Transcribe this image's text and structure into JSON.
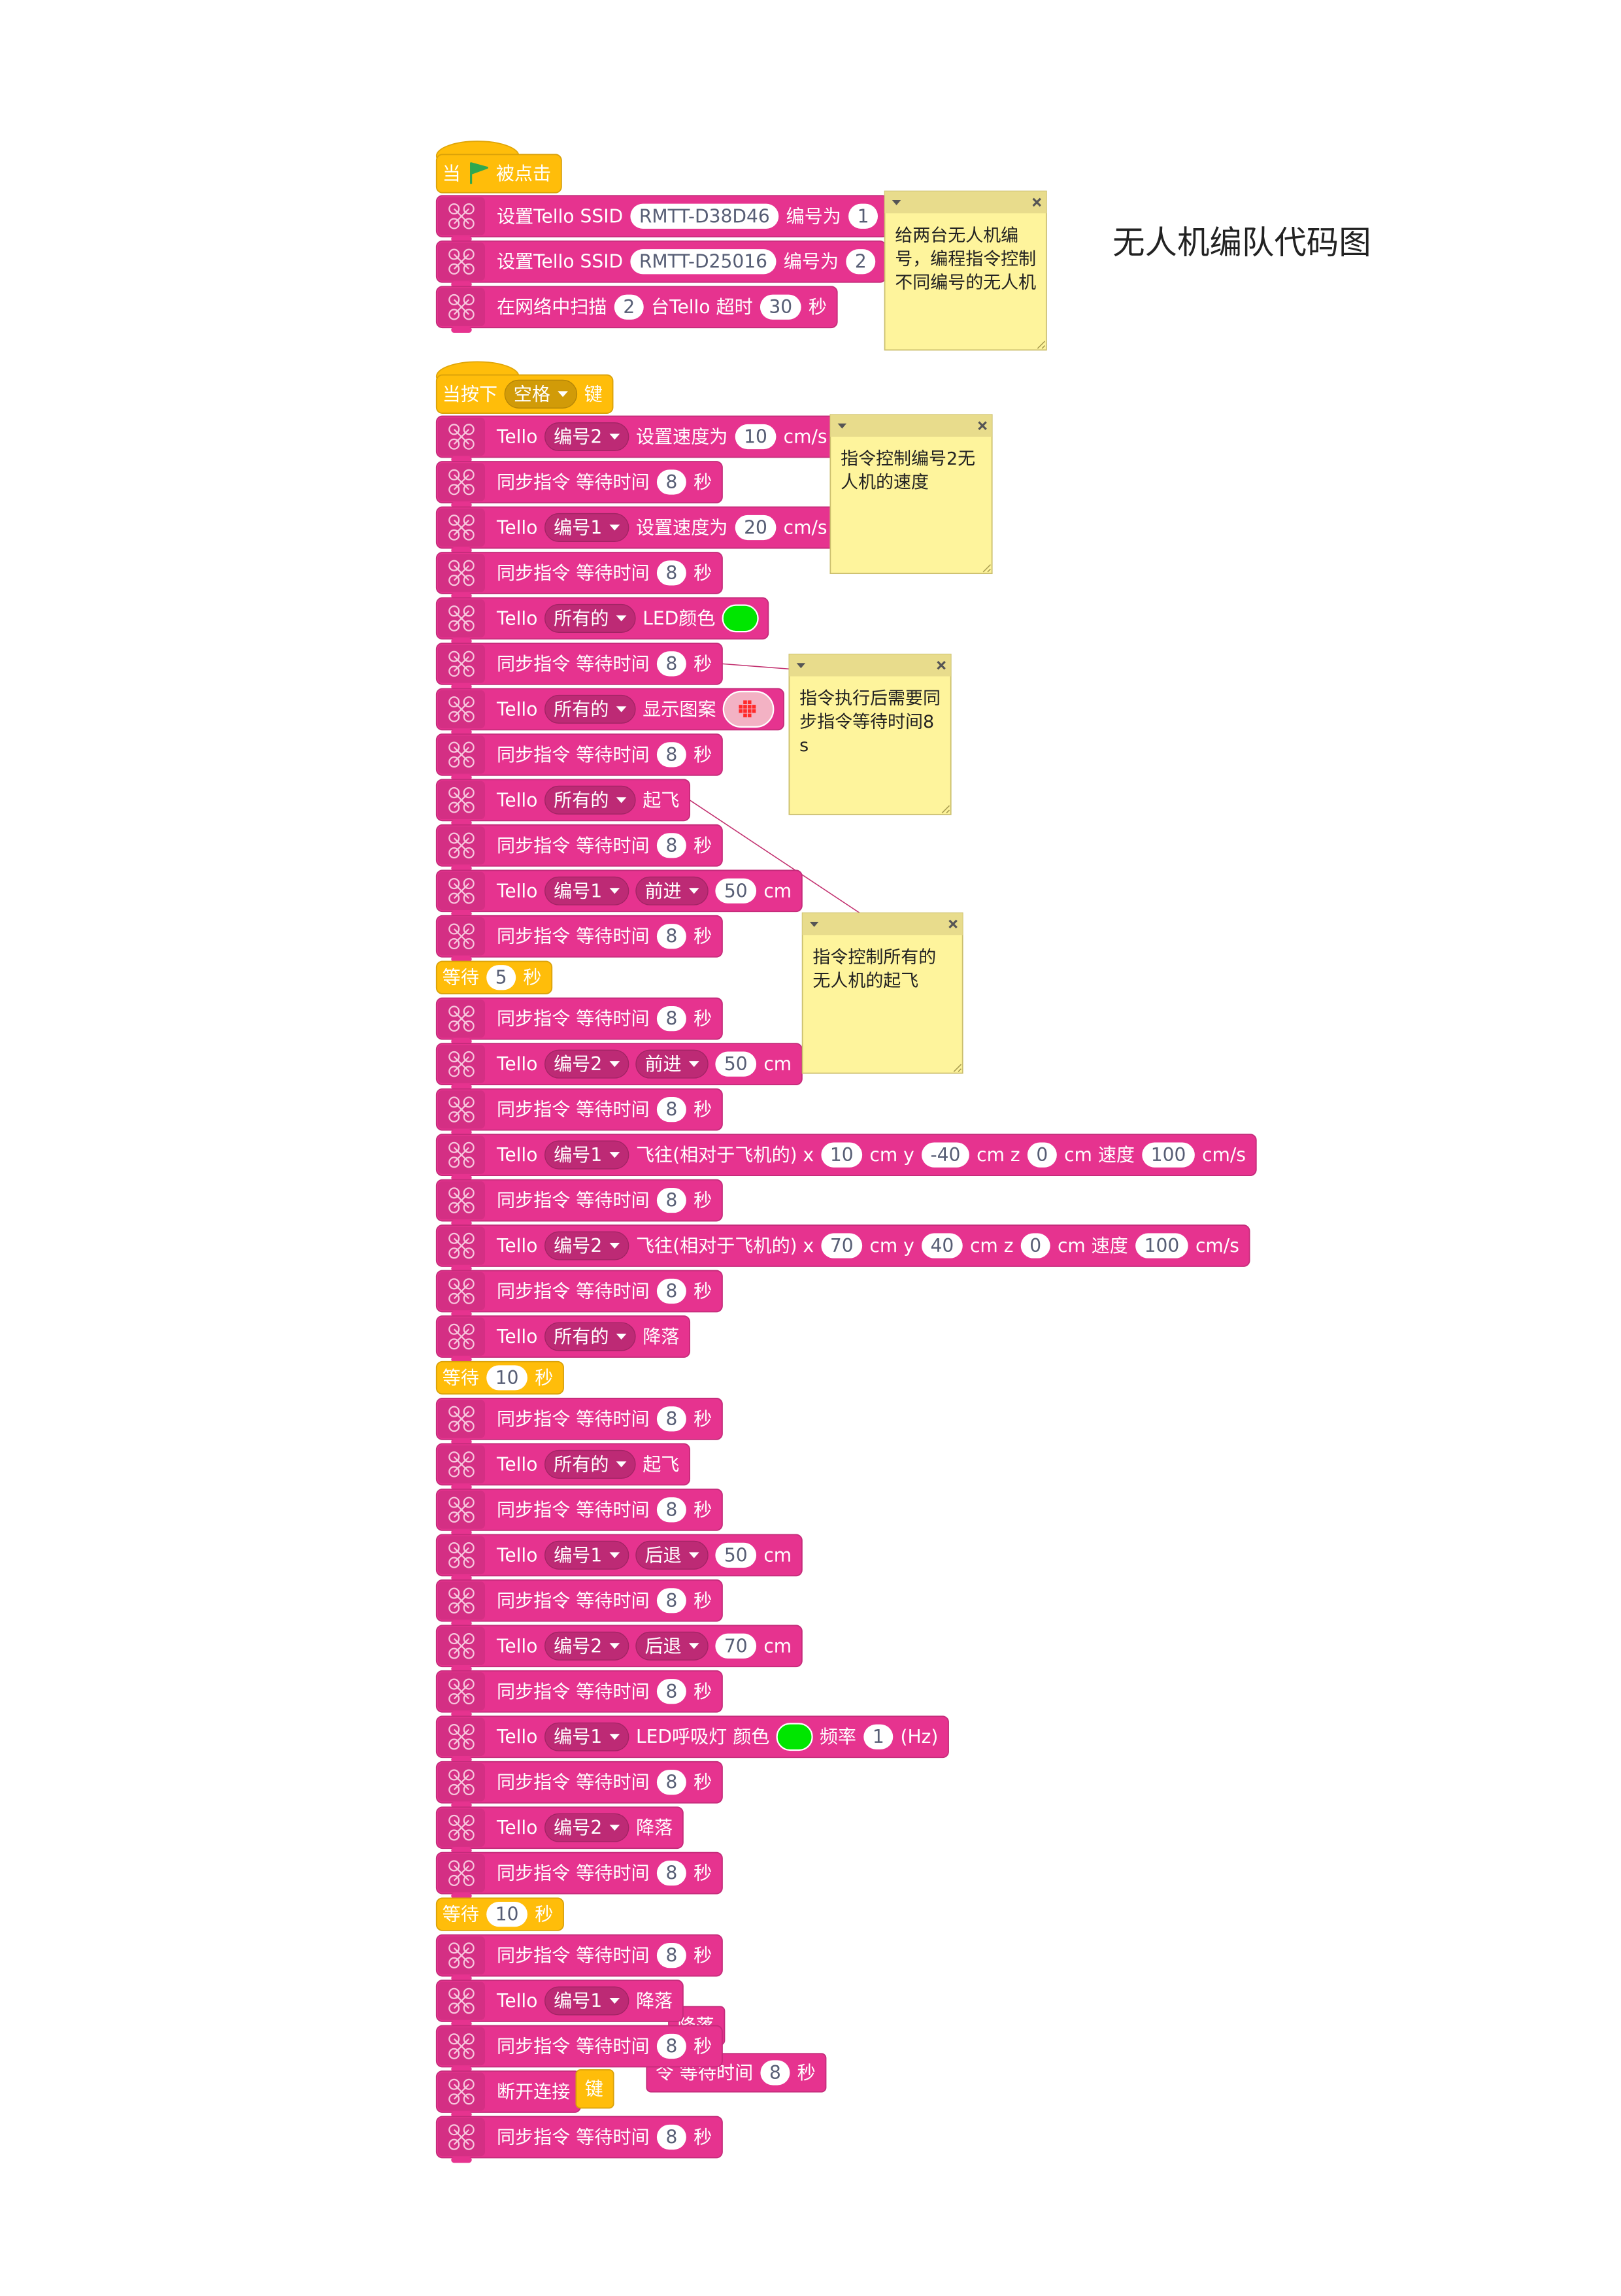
{
  "title": "无人机编队代码图",
  "scripts": [
    {
      "color": "#e6338f",
      "blocks": [
        {
          "color": "#ffbd0a",
          "parts": [
            "当",
            {
              "flag": "#2fa84f"
            },
            "被点击"
          ]
        },
        {
          "parts": [
            "设置Tello SSID",
            {
              "input": "RMTT-D38D46"
            },
            "编号为",
            {
              "input": 1
            }
          ]
        },
        {
          "parts": [
            "设置Tello SSID",
            {
              "input": "RMTT-D25016"
            },
            "编号为",
            {
              "input": 2
            }
          ]
        },
        {
          "parts": [
            "在网络中扫描",
            {
              "input": 2
            },
            "台Tello 超时",
            {
              "input": 30
            },
            "秒"
          ]
        }
      ]
    },
    {
      "color": "#e6338f",
      "blocks": [
        {
          "color": "#ffbd0a",
          "parts": [
            "当按下",
            {
              "menu": "空格"
            },
            "键"
          ]
        },
        {
          "parts": [
            "Tello",
            {
              "menu": "编号2"
            },
            "设置速度为",
            {
              "input": 10
            },
            "cm/s"
          ]
        },
        {
          "parts": [
            "同步指令 等待时间",
            {
              "input": 8
            },
            "秒"
          ]
        },
        {
          "parts": [
            "Tello",
            {
              "menu": "编号1"
            },
            "设置速度为",
            {
              "input": 20
            },
            "cm/s"
          ]
        },
        {
          "parts": [
            "同步指令 等待时间",
            {
              "input": 8
            },
            "秒"
          ]
        },
        {
          "parts": [
            "Tello",
            {
              "menu": "所有的"
            },
            "LED颜色",
            {
              "swatch": "#00e600"
            }
          ]
        },
        {
          "parts": [
            "同步指令 等待时间",
            {
              "input": 8
            },
            "秒"
          ]
        },
        {
          "parts": [
            "Tello",
            {
              "menu": "所有的"
            },
            "显示图案",
            {
              "matrix": "#ff2a2a"
            }
          ]
        },
        {
          "parts": [
            "同步指令 等待时间",
            {
              "input": 8
            },
            "秒"
          ]
        },
        {
          "parts": [
            "Tello",
            {
              "menu": "所有的"
            },
            "起飞"
          ]
        },
        {
          "parts": [
            "同步指令 等待时间",
            {
              "input": 8
            },
            "秒"
          ]
        },
        {
          "parts": [
            "Tello",
            {
              "menu": "编号1"
            },
            {
              "menu": "前进"
            },
            {
              "input": 50
            },
            "cm"
          ]
        },
        {
          "parts": [
            "同步指令 等待时间",
            {
              "input": 8
            },
            "秒"
          ]
        },
        {
          "color": "#ffbd0a",
          "parts": [
            "等待",
            {
              "input": 5
            },
            "秒"
          ]
        },
        {
          "parts": [
            "同步指令 等待时间",
            {
              "input": 8
            },
            "秒"
          ]
        },
        {
          "parts": [
            "Tello",
            {
              "menu": "编号2"
            },
            {
              "menu": "前进"
            },
            {
              "input": 50
            },
            "cm"
          ]
        },
        {
          "parts": [
            "同步指令 等待时间",
            {
              "input": 8
            },
            "秒"
          ]
        },
        {
          "parts": [
            "Tello",
            {
              "menu": "编号1"
            },
            "飞往(相对于飞机的) x",
            {
              "input": 10
            },
            "cm y",
            {
              "input": -40
            },
            "cm z",
            {
              "input": 0
            },
            "cm 速度",
            {
              "input": 100
            },
            "cm/s"
          ]
        },
        {
          "parts": [
            "同步指令 等待时间",
            {
              "input": 8
            },
            "秒"
          ]
        },
        {
          "parts": [
            "Tello",
            {
              "menu": "编号2"
            },
            "飞往(相对于飞机的) x",
            {
              "input": 70
            },
            "cm y",
            {
              "input": 40
            },
            "cm z",
            {
              "input": 0
            },
            "cm 速度",
            {
              "input": 100
            },
            "cm/s"
          ]
        },
        {
          "parts": [
            "同步指令 等待时间",
            {
              "input": 8
            },
            "秒"
          ]
        },
        {
          "parts": [
            "Tello",
            {
              "menu": "所有的"
            },
            "降落"
          ]
        },
        {
          "color": "#ffbd0a",
          "parts": [
            "等待",
            {
              "input": 10
            },
            "秒"
          ]
        },
        {
          "parts": [
            "同步指令 等待时间",
            {
              "input": 8
            },
            "秒"
          ]
        },
        {
          "parts": [
            "Tello",
            {
              "menu": "所有的"
            },
            "起飞"
          ]
        },
        {
          "parts": [
            "同步指令 等待时间",
            {
              "input": 8
            },
            "秒"
          ]
        },
        {
          "parts": [
            "Tello",
            {
              "menu": "编号1"
            },
            {
              "menu": "后退"
            },
            {
              "input": 50
            },
            "cm"
          ]
        },
        {
          "parts": [
            "同步指令 等待时间",
            {
              "input": 8
            },
            "秒"
          ]
        },
        {
          "parts": [
            "Tello",
            {
              "menu": "编号2"
            },
            {
              "menu": "后退"
            },
            {
              "input": 70
            },
            "cm"
          ]
        },
        {
          "parts": [
            "同步指令 等待时间",
            {
              "input": 8
            },
            "秒"
          ]
        },
        {
          "parts": [
            "Tello",
            {
              "menu": "编号1"
            },
            "LED呼吸灯 颜色",
            {
              "swatch": "#00e600"
            },
            "频率",
            {
              "input": 1
            },
            "(Hz)"
          ]
        },
        {
          "parts": [
            "同步指令 等待时间",
            {
              "input": 8
            },
            "秒"
          ]
        },
        {
          "parts": [
            "Tello",
            {
              "menu": "编号2"
            },
            "降落"
          ]
        },
        {
          "parts": [
            "同步指令 等待时间",
            {
              "input": 8
            },
            "秒"
          ]
        },
        {
          "color": "#ffbd0a",
          "parts": [
            "等待",
            {
              "input": 10
            },
            "秒"
          ]
        },
        {
          "parts": [
            "同步指令 等待时间",
            {
              "input": 8
            },
            "秒"
          ]
        },
        {
          "parts": [
            "Tello",
            {
              "menu": "编号1"
            },
            "降落"
          ]
        },
        {
          "parts": [
            "同步指令 等待时间",
            {
              "input": 8
            },
            "秒"
          ]
        },
        {
          "parts": [
            "断开连接"
          ]
        },
        {
          "parts": [
            "同步指令 等待时间",
            {
              "input": 8
            },
            "秒"
          ]
        }
      ]
    }
  ],
  "strays": [
    {
      "parts": [
        "降落"
      ]
    },
    {
      "parts": [
        "令 等待时间",
        {
          "input": 8
        },
        "秒"
      ]
    },
    {
      "color": "#ffbd0a",
      "parts": [
        "键"
      ]
    }
  ],
  "comments": [
    {
      "text": "给两台无人机编号，编程指令控制不同编号的无人机"
    },
    {
      "text": "指令控制编号2无人机的速度"
    },
    {
      "text": "指令执行后需要同步指令等待时间8s"
    },
    {
      "text": "指令控制所有的无人机的起飞"
    }
  ]
}
